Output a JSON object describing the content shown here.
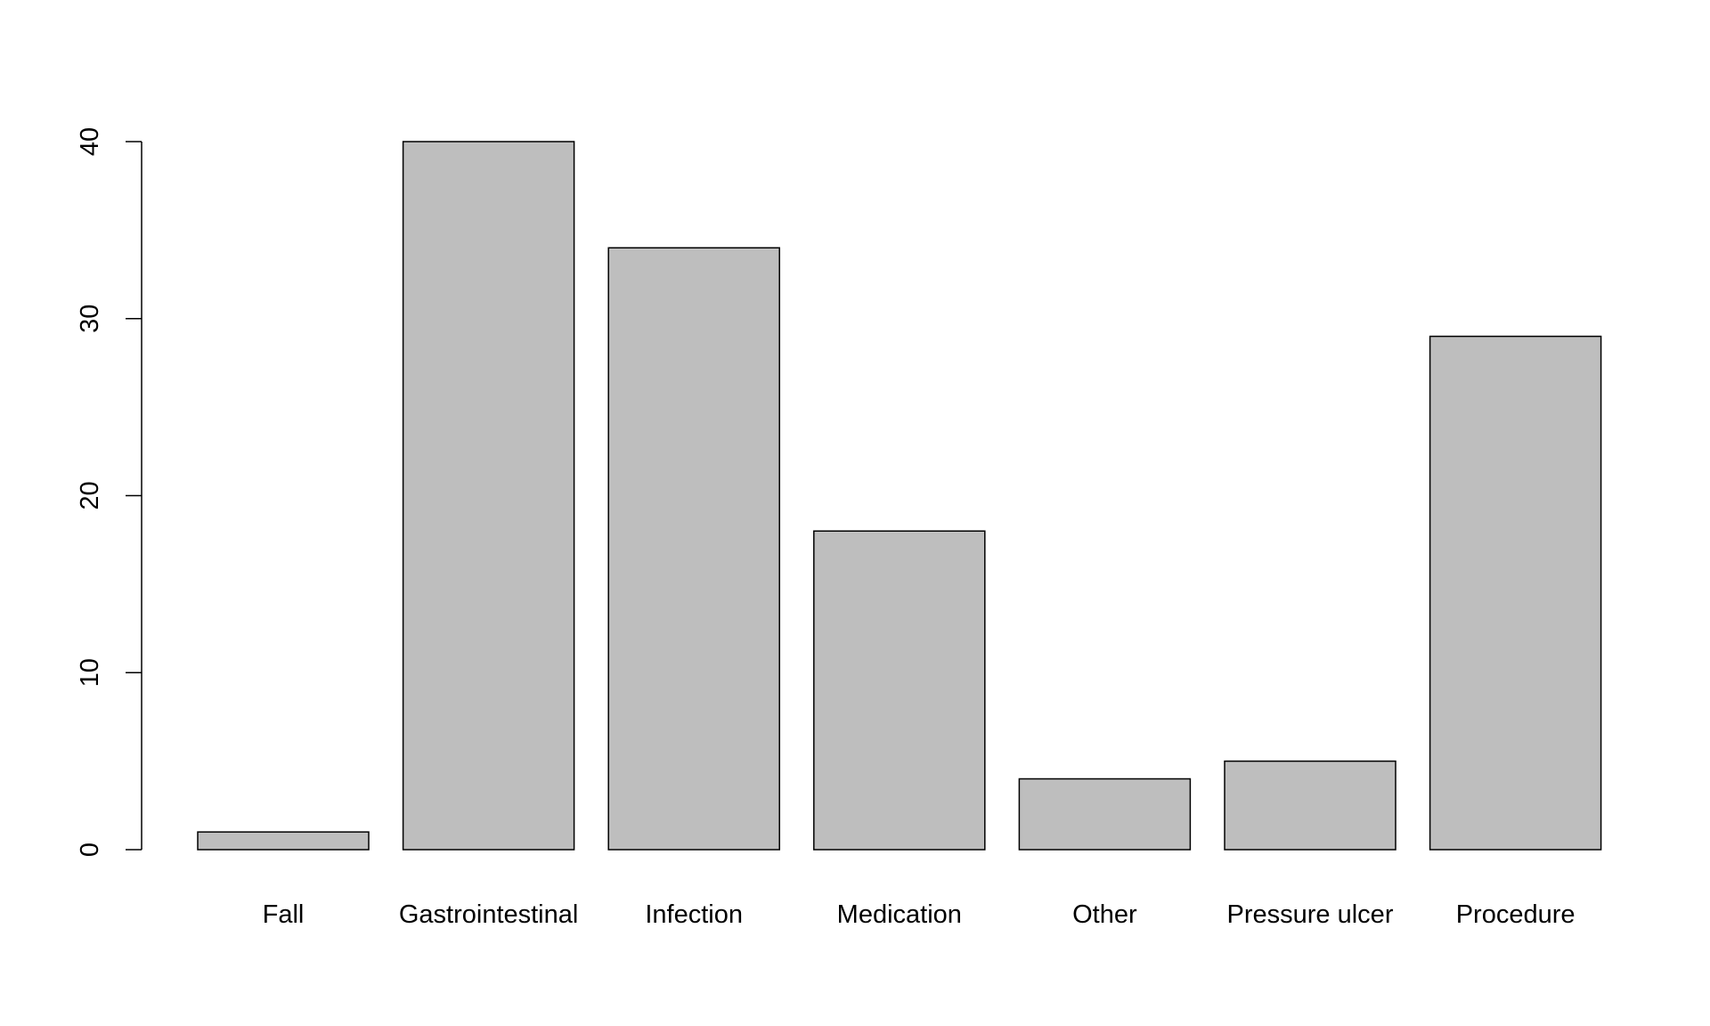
{
  "chart_data": {
    "type": "bar",
    "categories": [
      "Fall",
      "Gastrointestinal",
      "Infection",
      "Medication",
      "Other",
      "Pressure ulcer",
      "Procedure"
    ],
    "values": [
      1,
      40,
      34,
      18,
      4,
      5,
      29
    ],
    "color": "#bebebe",
    "ylim": [
      0,
      40
    ],
    "yticks": [
      0,
      10,
      20,
      30,
      40
    ],
    "grid": false
  }
}
